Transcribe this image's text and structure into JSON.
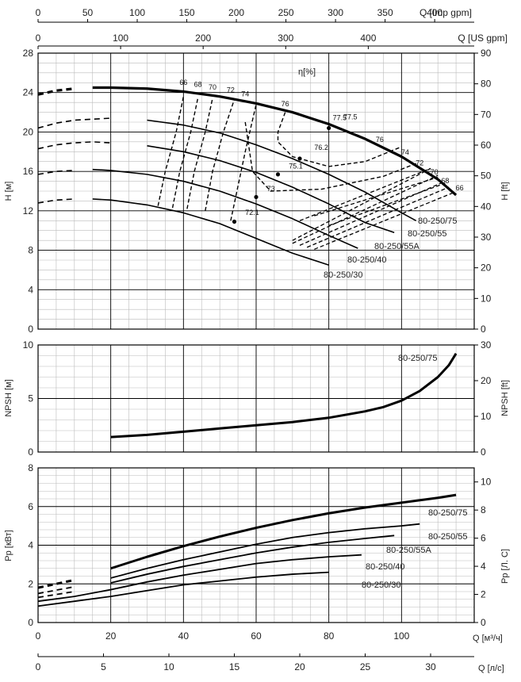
{
  "chart_data": [
    {
      "type": "line",
      "title": "",
      "top_axis_1": {
        "label": "Q [Imp gpm]",
        "ticks": [
          "0",
          "50",
          "100",
          "150",
          "200",
          "250",
          "300",
          "350",
          "400"
        ]
      },
      "top_axis_2": {
        "label": "Q [US gpm]",
        "ticks": [
          "0",
          "100",
          "200",
          "300",
          "400"
        ]
      },
      "ylabel": "H [м]",
      "ylabel_right": "H [ft]",
      "xlim": [
        0,
        120
      ],
      "ylim": [
        0,
        28
      ],
      "ylim_right": [
        0,
        90
      ],
      "yticks": [
        "0",
        "4",
        "8",
        "12",
        "16",
        "20",
        "24",
        "28"
      ],
      "yticks_right": [
        "0",
        "10",
        "20",
        "30",
        "40",
        "50",
        "60",
        "70",
        "80",
        "90"
      ],
      "efficiency_label": "η[%]",
      "series": [
        {
          "name": "80-250/75",
          "x": [
            0,
            5,
            10,
            15,
            20,
            30,
            40,
            50,
            60,
            70,
            80,
            90,
            100,
            110,
            115
          ],
          "y": [
            23.8,
            24.2,
            24.4,
            24.5,
            24.5,
            24.4,
            24.1,
            23.6,
            22.9,
            22.0,
            20.8,
            19.3,
            17.5,
            15.2,
            13.6
          ],
          "dash_until": 12
        },
        {
          "name": "80-250/55",
          "x": [
            0,
            5,
            10,
            20,
            30,
            40,
            50,
            60,
            70,
            80,
            90,
            100,
            104
          ],
          "y": [
            20.4,
            20.9,
            21.2,
            21.4,
            21.2,
            20.7,
            19.9,
            18.7,
            17.3,
            15.7,
            13.9,
            11.8,
            11.0
          ],
          "dash_until": 22
        },
        {
          "name": "80-250/55A",
          "x": [
            0,
            5,
            10,
            15,
            20,
            30,
            40,
            50,
            60,
            70,
            80,
            90,
            98
          ],
          "y": [
            18.3,
            18.7,
            18.9,
            19.0,
            18.9,
            18.6,
            18.0,
            17.1,
            15.9,
            14.4,
            12.7,
            10.8,
            9.8
          ],
          "dash_until": 22
        },
        {
          "name": "80-250/40",
          "x": [
            0,
            5,
            10,
            15,
            20,
            30,
            40,
            50,
            60,
            70,
            80,
            88
          ],
          "y": [
            15.7,
            16.0,
            16.1,
            16.2,
            16.1,
            15.7,
            15.0,
            14.0,
            12.7,
            11.2,
            9.5,
            8.2
          ],
          "dash_until": 14
        },
        {
          "name": "80-250/30",
          "x": [
            0,
            5,
            10,
            15,
            20,
            30,
            40,
            50,
            60,
            70,
            80
          ],
          "y": [
            12.8,
            13.1,
            13.2,
            13.2,
            13.1,
            12.6,
            11.8,
            10.7,
            9.2,
            7.7,
            6.5
          ],
          "dash_until": 12
        }
      ],
      "efficiency_labels": [
        "66",
        "68",
        "70",
        "72",
        "74",
        "76",
        "77.5",
        "76",
        "74",
        "72",
        "70",
        "68",
        "66"
      ],
      "point_labels": [
        "77.5",
        "76.2",
        "75.1",
        "73",
        "72.1"
      ],
      "curve_labels": [
        "80-250/75",
        "80-250/55",
        "80-250/55A",
        "80-250/40",
        "80-250/30"
      ]
    },
    {
      "type": "line",
      "title": "",
      "ylabel": "NPSH [м]",
      "ylabel_right": "NPSH [ft]",
      "xlim": [
        0,
        120
      ],
      "ylim": [
        0,
        10
      ],
      "ylim_right": [
        0,
        30
      ],
      "yticks": [
        "0",
        "5",
        "10"
      ],
      "yticks_right": [
        "0",
        "10",
        "20",
        "30"
      ],
      "series": [
        {
          "name": "80-250/75",
          "x": [
            20,
            30,
            40,
            50,
            60,
            70,
            80,
            90,
            95,
            100,
            105,
            110,
            113,
            115
          ],
          "y": [
            1.4,
            1.6,
            1.9,
            2.2,
            2.5,
            2.8,
            3.2,
            3.8,
            4.2,
            4.8,
            5.7,
            7.0,
            8.1,
            9.2
          ]
        }
      ]
    },
    {
      "type": "line",
      "title": "",
      "ylabel": "Pp [кВт]",
      "ylabel_right": "Pр [Л. С]",
      "xlabel": "Q [м³/ч]",
      "xlabel_2": "Q [л/с]",
      "xlim": [
        0,
        120
      ],
      "ylim": [
        0,
        8
      ],
      "ylim_right": [
        0,
        11
      ],
      "xticks": [
        "0",
        "20",
        "40",
        "60",
        "80",
        "100"
      ],
      "xticks_2": [
        "0",
        "5",
        "10",
        "15",
        "20",
        "25",
        "30"
      ],
      "yticks": [
        "0",
        "2",
        "4",
        "6",
        "8"
      ],
      "yticks_right": [
        "0",
        "2",
        "4",
        "6",
        "8",
        "10"
      ],
      "series": [
        {
          "name": "80-250/75",
          "x": [
            0,
            10,
            20,
            30,
            40,
            50,
            60,
            70,
            80,
            90,
            100,
            110,
            115
          ],
          "y": [
            1.8,
            2.2,
            2.8,
            3.4,
            3.95,
            4.45,
            4.9,
            5.3,
            5.65,
            5.95,
            6.2,
            6.45,
            6.6
          ],
          "dash_until": 18
        },
        {
          "name": "80-250/55",
          "x": [
            0,
            10,
            20,
            30,
            40,
            50,
            60,
            70,
            80,
            90,
            100,
            105
          ],
          "y": [
            1.5,
            1.85,
            2.3,
            2.8,
            3.25,
            3.65,
            4.05,
            4.4,
            4.65,
            4.85,
            5.0,
            5.1
          ],
          "dash_until": 18
        },
        {
          "name": "80-250/55A",
          "x": [
            0,
            10,
            20,
            30,
            40,
            50,
            60,
            70,
            80,
            90,
            98
          ],
          "y": [
            1.3,
            1.6,
            2.05,
            2.5,
            2.9,
            3.25,
            3.6,
            3.9,
            4.15,
            4.35,
            4.5
          ],
          "dash_until": 18
        },
        {
          "name": "80-250/40",
          "x": [
            0,
            10,
            20,
            30,
            40,
            50,
            60,
            70,
            80,
            89
          ],
          "y": [
            1.1,
            1.35,
            1.7,
            2.1,
            2.45,
            2.75,
            3.05,
            3.25,
            3.4,
            3.5
          ],
          "dash_until": 0
        },
        {
          "name": "80-250/30",
          "x": [
            0,
            10,
            20,
            30,
            40,
            50,
            60,
            70,
            80
          ],
          "y": [
            0.85,
            1.1,
            1.35,
            1.65,
            1.95,
            2.15,
            2.35,
            2.5,
            2.6
          ],
          "dash_until": 0
        }
      ],
      "curve_labels": [
        "80-250/75",
        "80-250/55",
        "80-250/55A",
        "80-250/40",
        "80-250/30"
      ]
    }
  ]
}
